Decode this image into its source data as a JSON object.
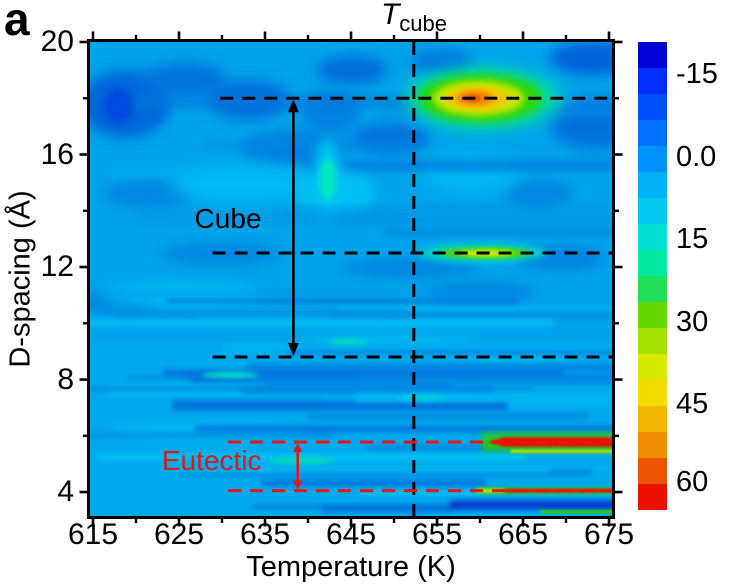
{
  "panel_label": "a",
  "title": {
    "prefix": "T",
    "subscript": "cube"
  },
  "chart_data": {
    "type": "heatmap",
    "title": "T_cube",
    "xlabel": "Temperature (K)",
    "ylabel": "D-spacing (Å)",
    "x_range": [
      614.6,
      675.4
    ],
    "y_range": [
      3.15,
      20
    ],
    "x_ticks": [
      615,
      625,
      635,
      645,
      655,
      665,
      675
    ],
    "x_minor_ticks": [
      620,
      630,
      640,
      650,
      660,
      670
    ],
    "y_ticks": [
      20,
      16,
      12,
      8,
      4
    ],
    "y_minor_ticks": [
      18,
      14,
      10,
      6
    ],
    "background_hex": "#00a4ea",
    "colorbar": {
      "labels": [
        "-15",
        "0.0",
        "15",
        "30",
        "45",
        "60"
      ],
      "values": [
        -15,
        0,
        15,
        30,
        45,
        60
      ],
      "top_value": -21,
      "bottom_value": 65,
      "colors": [
        "#0000d2",
        "#002eff",
        "#0050ff",
        "#0072ff",
        "#0092fc",
        "#00b0f8",
        "#00caf0",
        "#00dfd4",
        "#00e9a2",
        "#22e058",
        "#66d800",
        "#a2e000",
        "#d8ea00",
        "#f4dc00",
        "#f2b600",
        "#ef8e00",
        "#ed5400",
        "#eb1000"
      ]
    },
    "features": [
      {
        "name": "cube-superlattice-spot",
        "T": 660.3,
        "d": 18.0,
        "T_extent": [
          653.5,
          667.5
        ],
        "d_extent": [
          16.9,
          19.1
        ],
        "peak_value": 52
      },
      {
        "name": "cube-spot-12.5",
        "T": 660.3,
        "d": 12.5,
        "T_extent": [
          655,
          666
        ],
        "d_extent": [
          12.2,
          12.85
        ],
        "peak_value": 32
      },
      {
        "name": "mint-spot",
        "T": 642.3,
        "d": 15.1,
        "peak_value": 8
      },
      {
        "name": "eutectic-line-5.8",
        "d": 5.78,
        "T_start": 660.2,
        "T_end": 675.4,
        "peak_value": 65
      },
      {
        "name": "eutectic-line-4.05",
        "d": 4.05,
        "T_start": 659.6,
        "T_end": 675.4,
        "peak_value": 62
      },
      {
        "name": "bottom-dark-band",
        "d": 3.55,
        "T_start": 656.5,
        "T_end": 675.4,
        "peak_value": -18
      },
      {
        "name": "bottom-green-line",
        "d": 3.3,
        "T_start": 667,
        "T_end": 675.4,
        "peak_value": 20
      }
    ],
    "dashed_guides": [
      {
        "orientation": "horizontal",
        "d": 18,
        "T_start": 629.8,
        "color": "#000000"
      },
      {
        "orientation": "horizontal",
        "d": 12.5,
        "T_start": 628.9,
        "color": "#000000"
      },
      {
        "orientation": "horizontal",
        "d": 8.8,
        "T_start": 628.9,
        "color": "#000000"
      },
      {
        "orientation": "vertical",
        "T": 652.3,
        "color": "#000000"
      },
      {
        "orientation": "horizontal",
        "d": 5.78,
        "T_start": 630.7,
        "color": "#e01818"
      },
      {
        "orientation": "horizontal",
        "d": 4.05,
        "T_start": 630.7,
        "color": "#e01818"
      }
    ],
    "annotations": [
      {
        "label": "Cube",
        "region_d": [
          8.8,
          18.0
        ],
        "arrow_T": 638.3,
        "label_T": 630.7,
        "label_d": 13.7,
        "color": "#000000"
      },
      {
        "label": "Eutectic",
        "region_d": [
          4.05,
          5.78
        ],
        "arrow_T": 638.8,
        "label_T": 628.8,
        "label_d": 5.1,
        "color": "#e01818"
      }
    ]
  }
}
